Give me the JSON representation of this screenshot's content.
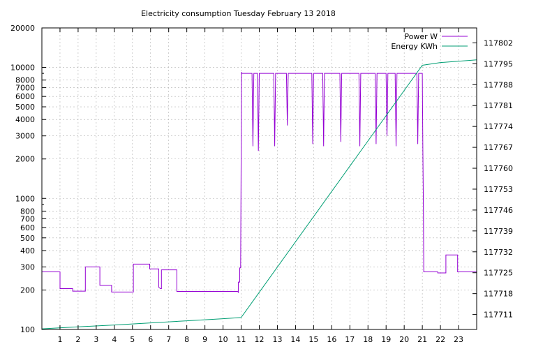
{
  "chart_data": {
    "type": "line",
    "title": "Electricity consumption Tuesday February 13 2018",
    "xlabel": "",
    "ylabel": "",
    "y2label": "",
    "grid": true,
    "legend_position": "top-right",
    "xlim": [
      0,
      24
    ],
    "ylim": [
      100,
      20000
    ],
    "yscale": "log",
    "y2lim": [
      117706,
      117807
    ],
    "xticks": [
      1,
      2,
      3,
      4,
      5,
      6,
      7,
      8,
      9,
      10,
      11,
      12,
      13,
      14,
      15,
      16,
      17,
      18,
      19,
      20,
      21,
      22,
      23
    ],
    "yticks": [
      {
        "value": 100,
        "label": "100"
      },
      {
        "value": 200,
        "label": "200"
      },
      {
        "value": 300,
        "label": "300"
      },
      {
        "value": 400,
        "label": "400"
      },
      {
        "value": 500,
        "label": "500"
      },
      {
        "value": 600,
        "label": "600"
      },
      {
        "value": 700,
        "label": "700"
      },
      {
        "value": 800,
        "label": "800"
      },
      {
        "value": 1000,
        "label": "1000"
      },
      {
        "value": 2000,
        "label": "2000"
      },
      {
        "value": 3000,
        "label": "3000"
      },
      {
        "value": 4000,
        "label": "4000"
      },
      {
        "value": 5000,
        "label": "5000"
      },
      {
        "value": 6000,
        "label": "6000"
      },
      {
        "value": 7000,
        "label": "7000"
      },
      {
        "value": 8000,
        "label": "8000"
      },
      {
        "value": 10000,
        "label": "10000"
      },
      {
        "value": 20000,
        "label": "20000"
      }
    ],
    "y2ticks": [
      117711,
      117718,
      117725,
      117732,
      117739,
      117746,
      117753,
      117760,
      117767,
      117774,
      117781,
      117788,
      117795,
      117802
    ],
    "series": [
      {
        "name": "Power W",
        "axis": "y",
        "color": "#9400d3",
        "x": [
          0,
          1.0,
          1.0,
          1.7,
          1.7,
          2.4,
          2.4,
          3.2,
          3.2,
          3.85,
          3.85,
          4.05,
          4.05,
          4.05,
          4.05,
          5.05,
          5.05,
          5.95,
          5.95,
          6.4,
          6.45,
          6.45,
          6.55,
          6.6,
          6.6,
          7.4,
          7.45,
          7.45,
          7.7,
          7.7,
          10.8,
          10.85,
          10.85,
          10.92,
          10.92,
          10.97,
          11.02,
          11.05,
          11.6,
          11.65,
          11.7,
          11.9,
          11.95,
          12.0,
          12.8,
          12.85,
          12.9,
          13.5,
          13.55,
          13.6,
          14.9,
          14.95,
          15.0,
          15.5,
          15.55,
          15.6,
          16.45,
          16.5,
          16.55,
          17.5,
          17.55,
          17.6,
          18.4,
          18.45,
          18.5,
          19.0,
          19.05,
          19.1,
          19.5,
          19.55,
          19.6,
          20.7,
          20.75,
          20.8,
          21.0,
          21.03,
          21.06,
          21.08,
          21.15,
          21.85,
          21.85,
          22.3,
          22.3,
          22.95,
          22.95,
          24
        ],
        "y": [
          275,
          275,
          205,
          205,
          196,
          196,
          300,
          300,
          217,
          217,
          193,
          193,
          193,
          193,
          193,
          193,
          315,
          315,
          290,
          290,
          290,
          210,
          205,
          205,
          285,
          285,
          285,
          195,
          195,
          195,
          195,
          192,
          230,
          230,
          295,
          295,
          9200,
          9000,
          9000,
          2500,
          9000,
          9000,
          2300,
          9000,
          9000,
          2500,
          9000,
          9000,
          3600,
          9000,
          9000,
          2600,
          9000,
          9000,
          2500,
          9000,
          9000,
          2700,
          9000,
          9000,
          2500,
          9000,
          9000,
          2600,
          9000,
          9000,
          3000,
          9000,
          9000,
          2500,
          9000,
          9000,
          2600,
          9000,
          9000,
          2300,
          800,
          275,
          275,
          275,
          270,
          270,
          370,
          370,
          275,
          275
        ]
      },
      {
        "name": "Energy KWh",
        "axis": "y2",
        "color": "#009e73",
        "x": [
          0,
          2.0,
          4.0,
          6.0,
          8.0,
          10.0,
          11.0,
          21.0,
          22.0,
          24.0
        ],
        "y": [
          117706.2,
          117706.9,
          117707.5,
          117708.2,
          117708.9,
          117709.6,
          117710.0,
          117794.5,
          117795.4,
          117796.3
        ]
      }
    ]
  }
}
